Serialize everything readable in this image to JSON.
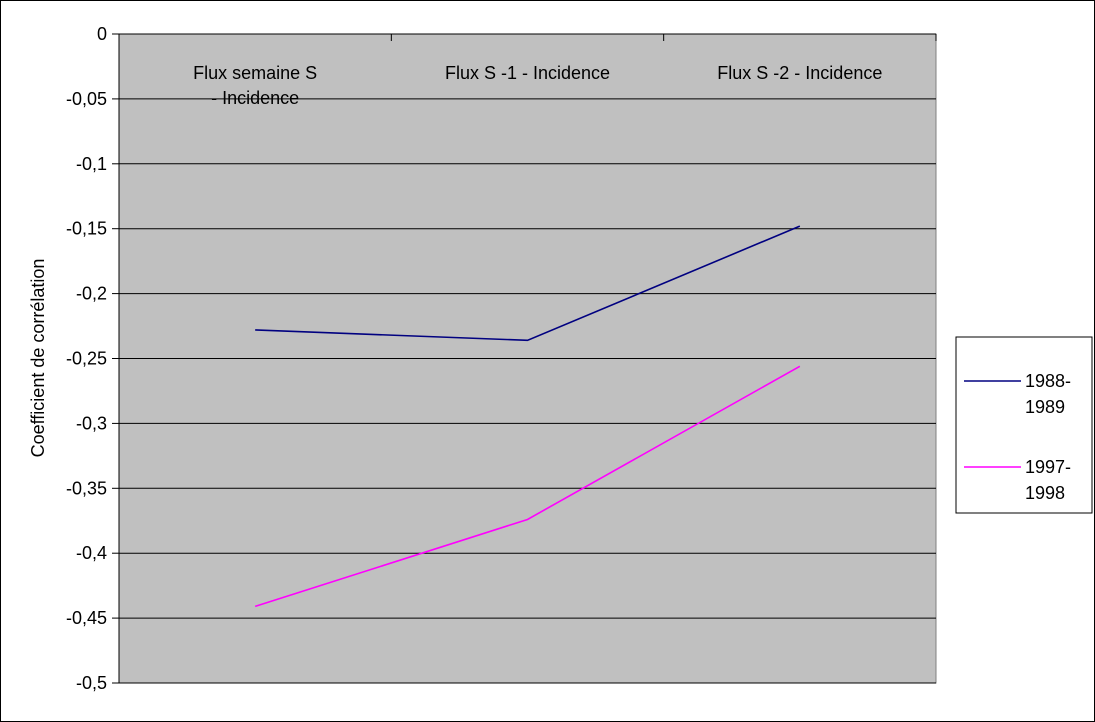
{
  "chart_data": {
    "type": "line",
    "title": "",
    "xlabel": "",
    "ylabel": "Coefficient de corrélation",
    "categories": [
      [
        "Flux semaine S",
        "- Incidence"
      ],
      [
        "Flux S -1 - Incidence"
      ],
      [
        "Flux S -2 - Incidence"
      ]
    ],
    "ylim": [
      -0.5,
      0
    ],
    "ytick_step": 0.05,
    "ytick_labels": [
      "0",
      "-0,05",
      "-0,1",
      "-0,15",
      "-0,2",
      "-0,25",
      "-0,3",
      "-0,35",
      "-0,4",
      "-0,45",
      "-0,5"
    ],
    "grid": true,
    "plot_background": "#c0c0c0",
    "legend_position": "right",
    "series": [
      {
        "name": [
          "1988-",
          "1989"
        ],
        "color": "#000080",
        "values": [
          -0.228,
          -0.236,
          -0.148
        ]
      },
      {
        "name": [
          "1997-",
          "1998"
        ],
        "color": "#ff00ff",
        "values": [
          -0.441,
          -0.374,
          -0.256
        ]
      }
    ]
  }
}
